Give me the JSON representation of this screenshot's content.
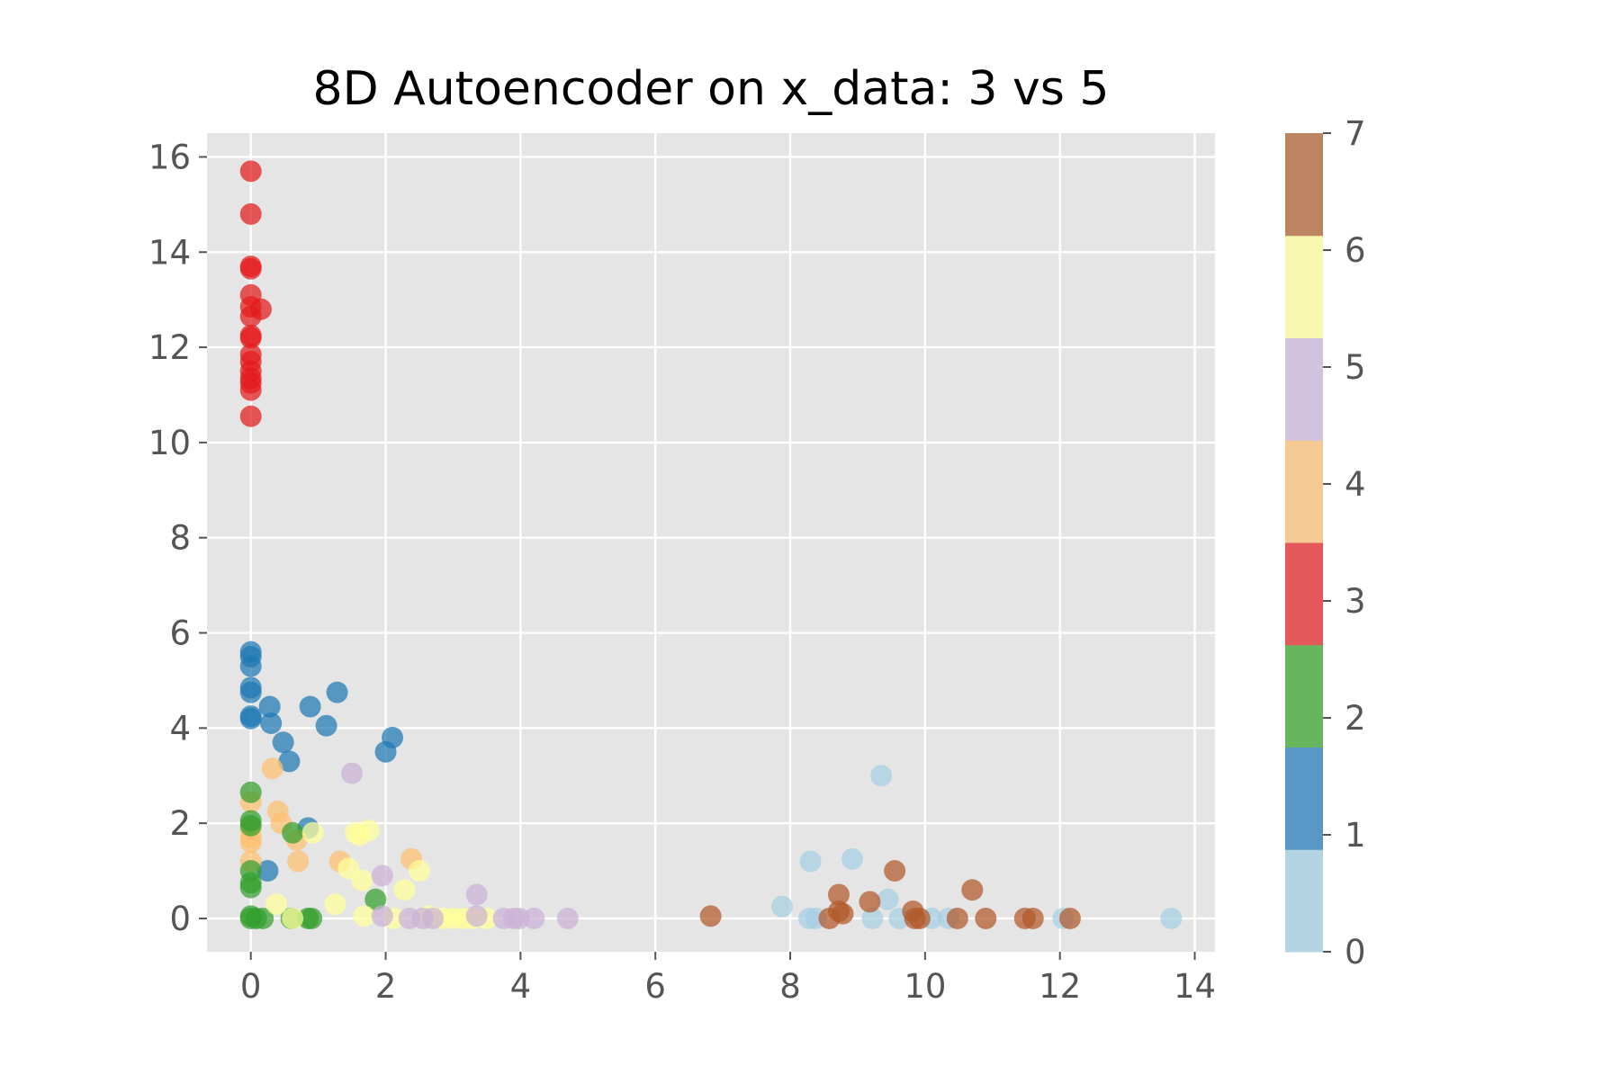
{
  "chart_data": {
    "type": "scatter",
    "title": "8D Autoencoder on x_data: 3 vs 5",
    "xlabel": "",
    "ylabel": "",
    "xlim": [
      -0.65,
      14.3
    ],
    "ylim": [
      -0.7,
      16.5
    ],
    "x_ticks": [
      0,
      2,
      4,
      6,
      8,
      10,
      12,
      14
    ],
    "y_ticks": [
      0,
      2,
      4,
      6,
      8,
      10,
      12,
      14,
      16
    ],
    "grid": true,
    "style": "ggplot",
    "colorbar": {
      "range": [
        0,
        7
      ],
      "ticks": [
        0,
        1,
        2,
        3,
        4,
        5,
        6,
        7
      ],
      "colors": [
        "#b4d4e4",
        "#5897c6",
        "#67b55e",
        "#e4575a",
        "#f4c993",
        "#d1c3de",
        "#f8f7b0",
        "#bd8461"
      ]
    },
    "class_colors": [
      "#a6cee3",
      "#1f78b4",
      "#33a02c",
      "#e31a1c",
      "#fdbf6f",
      "#cab2d6",
      "#ffff99",
      "#b15928"
    ],
    "points": [
      [
        0,
        15.7,
        3
      ],
      [
        0,
        14.8,
        3
      ],
      [
        0,
        13.7,
        3
      ],
      [
        0,
        13.65,
        3
      ],
      [
        0,
        13.1,
        3
      ],
      [
        0,
        12.85,
        3
      ],
      [
        0.15,
        12.8,
        3
      ],
      [
        0,
        12.65,
        3
      ],
      [
        0,
        12.25,
        3
      ],
      [
        0,
        12.2,
        3
      ],
      [
        0,
        11.85,
        3
      ],
      [
        0,
        11.7,
        3
      ],
      [
        0,
        11.5,
        3
      ],
      [
        0,
        11.35,
        3
      ],
      [
        0,
        11.25,
        3
      ],
      [
        0,
        11.1,
        3
      ],
      [
        0,
        10.55,
        3
      ],
      [
        0,
        5.6,
        1
      ],
      [
        0,
        5.5,
        1
      ],
      [
        0,
        5.3,
        1
      ],
      [
        0,
        4.85,
        1
      ],
      [
        0,
        4.75,
        1
      ],
      [
        0,
        4.25,
        1
      ],
      [
        0,
        4.2,
        1
      ],
      [
        0.28,
        4.45,
        1
      ],
      [
        0.3,
        4.1,
        1
      ],
      [
        0.48,
        3.7,
        1
      ],
      [
        0.57,
        3.3,
        1
      ],
      [
        0.88,
        4.45,
        1
      ],
      [
        1.12,
        4.05,
        1
      ],
      [
        1.28,
        4.75,
        1
      ],
      [
        2.1,
        3.8,
        1
      ],
      [
        2.0,
        3.5,
        1
      ],
      [
        0.25,
        1.0,
        1
      ],
      [
        0.85,
        1.9,
        1
      ],
      [
        0.32,
        3.15,
        4
      ],
      [
        0,
        2.45,
        4
      ],
      [
        0,
        1.9,
        4
      ],
      [
        0,
        1.7,
        4
      ],
      [
        0,
        1.6,
        4
      ],
      [
        0,
        1.2,
        4
      ],
      [
        0.4,
        2.25,
        4
      ],
      [
        0.45,
        2.0,
        4
      ],
      [
        0.68,
        1.65,
        4
      ],
      [
        0.7,
        1.2,
        4
      ],
      [
        1.32,
        1.2,
        4
      ],
      [
        2.38,
        1.25,
        4
      ],
      [
        0,
        2.65,
        2
      ],
      [
        0,
        2.05,
        2
      ],
      [
        0,
        1.95,
        2
      ],
      [
        0,
        1.0,
        2
      ],
      [
        0,
        0.75,
        2
      ],
      [
        0,
        0.65,
        2
      ],
      [
        0,
        0.05,
        2
      ],
      [
        0,
        0.0,
        2
      ],
      [
        0.08,
        0.0,
        2
      ],
      [
        0.18,
        0.0,
        2
      ],
      [
        0.62,
        1.8,
        2
      ],
      [
        0.6,
        0.0,
        2
      ],
      [
        0.85,
        0.0,
        2
      ],
      [
        0.9,
        0.0,
        2
      ],
      [
        1.85,
        0.4,
        2
      ],
      [
        0.92,
        1.8,
        6
      ],
      [
        1.55,
        1.8,
        6
      ],
      [
        1.62,
        1.75,
        6
      ],
      [
        1.75,
        1.85,
        6
      ],
      [
        1.45,
        1.05,
        6
      ],
      [
        1.65,
        0.8,
        6
      ],
      [
        2.5,
        1.0,
        6
      ],
      [
        2.28,
        0.6,
        6
      ],
      [
        0.38,
        0.3,
        6
      ],
      [
        1.25,
        0.3,
        6
      ],
      [
        1.68,
        0.05,
        6
      ],
      [
        2.12,
        0.0,
        6
      ],
      [
        0.62,
        0.0,
        6
      ],
      [
        2.65,
        0.05,
        6
      ],
      [
        2.85,
        0.0,
        6
      ],
      [
        3.0,
        0.0,
        6
      ],
      [
        3.15,
        0.0,
        6
      ],
      [
        3.3,
        0.0,
        6
      ],
      [
        3.5,
        0.0,
        6
      ],
      [
        1.5,
        3.05,
        5
      ],
      [
        1.95,
        0.9,
        5
      ],
      [
        1.95,
        0.05,
        5
      ],
      [
        2.35,
        0.0,
        5
      ],
      [
        2.55,
        0.0,
        5
      ],
      [
        2.7,
        0.0,
        5
      ],
      [
        3.35,
        0.5,
        5
      ],
      [
        3.35,
        0.05,
        5
      ],
      [
        3.75,
        0.0,
        5
      ],
      [
        3.9,
        0.0,
        5
      ],
      [
        3.98,
        0.0,
        5
      ],
      [
        4.2,
        0.0,
        5
      ],
      [
        4.7,
        0.0,
        5
      ],
      [
        9.35,
        3.0,
        0
      ],
      [
        8.3,
        1.2,
        0
      ],
      [
        8.92,
        1.25,
        0
      ],
      [
        9.45,
        0.4,
        0
      ],
      [
        7.88,
        0.25,
        0
      ],
      [
        8.28,
        0.0,
        0
      ],
      [
        8.38,
        0.0,
        0
      ],
      [
        9.22,
        0.0,
        0
      ],
      [
        9.62,
        0.0,
        0
      ],
      [
        10.1,
        0.0,
        0
      ],
      [
        10.35,
        0.0,
        0
      ],
      [
        12.05,
        0.0,
        0
      ],
      [
        13.65,
        0.0,
        0
      ],
      [
        6.82,
        0.05,
        7
      ],
      [
        8.72,
        0.5,
        7
      ],
      [
        8.72,
        0.15,
        7
      ],
      [
        8.78,
        0.1,
        7
      ],
      [
        8.58,
        0.0,
        7
      ],
      [
        9.18,
        0.35,
        7
      ],
      [
        9.55,
        1.0,
        7
      ],
      [
        9.82,
        0.15,
        7
      ],
      [
        9.92,
        0.0,
        7
      ],
      [
        9.85,
        0.0,
        7
      ],
      [
        10.48,
        0.0,
        7
      ],
      [
        10.7,
        0.6,
        7
      ],
      [
        10.9,
        0.0,
        7
      ],
      [
        11.48,
        0.0,
        7
      ],
      [
        11.6,
        0.0,
        7
      ],
      [
        12.15,
        0.0,
        7
      ]
    ]
  }
}
